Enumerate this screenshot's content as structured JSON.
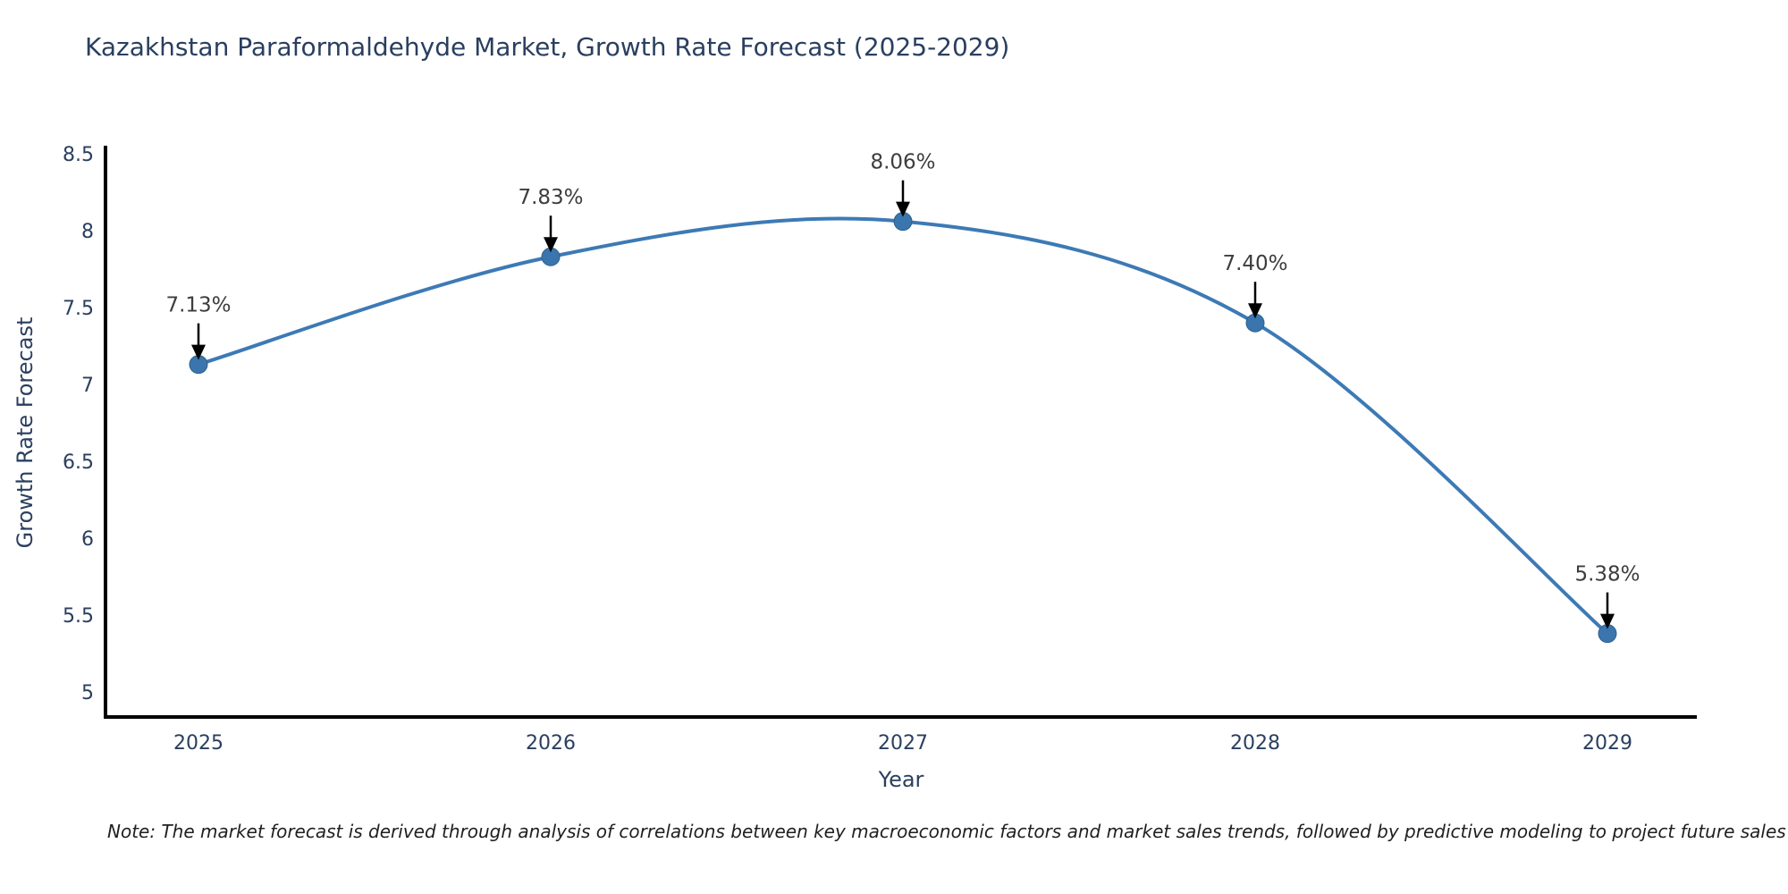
{
  "title": "Kazakhstan Paraformaldehyde Market, Growth Rate Forecast (2025-2029)",
  "note": "Note: The market forecast is derived through analysis of correlations between key macroeconomic factors and market sales trends, followed by predictive modeling to project future sales",
  "chart_data": {
    "type": "line",
    "title": "Kazakhstan Paraformaldehyde Market, Growth Rate Forecast (2025-2029)",
    "xlabel": "Year",
    "ylabel": "Growth Rate Forecast",
    "categories": [
      "2025",
      "2026",
      "2027",
      "2028",
      "2029"
    ],
    "values": [
      7.13,
      7.83,
      8.06,
      7.4,
      5.38
    ],
    "point_labels": [
      "7.13%",
      "7.83%",
      "8.06%",
      "7.40%",
      "5.38%"
    ],
    "ylim": [
      5,
      8.5
    ],
    "yticks": [
      8.5,
      8,
      7.5,
      7,
      6.5,
      6,
      5.5,
      5
    ],
    "ytick_labels": [
      "8.5",
      "8",
      "7.5",
      "7",
      "6.5",
      "6",
      "5.5",
      "5"
    ],
    "line_shape": "spline",
    "grid": false,
    "legend": "none",
    "colors": {
      "line": "#3d7ab5",
      "marker_fill": "#3a76ad",
      "marker_edge": "#2f608d",
      "arrow": "#000000",
      "axis": "#000000",
      "tick_text": "#2a3f5f",
      "annotation_text": "#3d3d3d",
      "title_text": "#2a3f5f"
    }
  }
}
